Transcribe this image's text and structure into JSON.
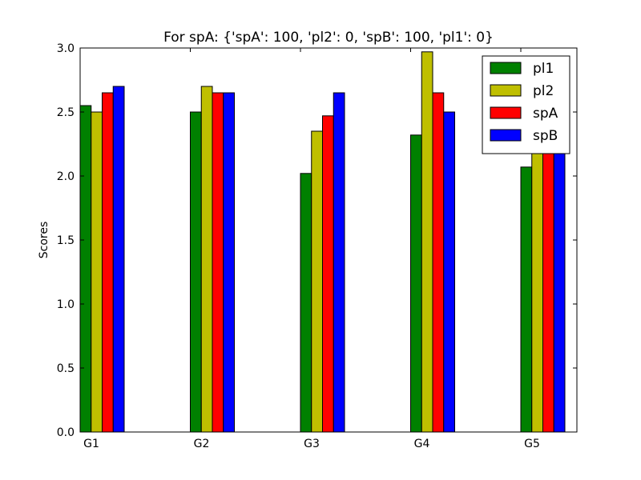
{
  "chart_data": {
    "type": "bar",
    "title": "For spA: {'spA': 100, 'pl2': 0, 'spB': 100, 'pl1': 0}",
    "xlabel": "",
    "ylabel": "Scores",
    "categories": [
      "G1",
      "G2",
      "G3",
      "G4",
      "G5"
    ],
    "ylim": [
      0,
      3.0
    ],
    "yticks": [
      "0.0",
      "0.5",
      "1.0",
      "1.5",
      "2.0",
      "2.5",
      "3.0"
    ],
    "grid": false,
    "legend_position": "top-right",
    "series": [
      {
        "name": "pl1",
        "color": "#008000",
        "values": [
          2.55,
          2.5,
          2.02,
          2.32,
          2.07
        ]
      },
      {
        "name": "pl2",
        "color": "#bfbf00",
        "values": [
          2.5,
          2.7,
          2.35,
          2.97,
          2.2
        ]
      },
      {
        "name": "spA",
        "color": "#ff0000",
        "values": [
          2.65,
          2.65,
          2.47,
          2.65,
          2.25
        ]
      },
      {
        "name": "spB",
        "color": "#0000ff",
        "values": [
          2.7,
          2.65,
          2.65,
          2.5,
          2.3
        ]
      }
    ]
  }
}
